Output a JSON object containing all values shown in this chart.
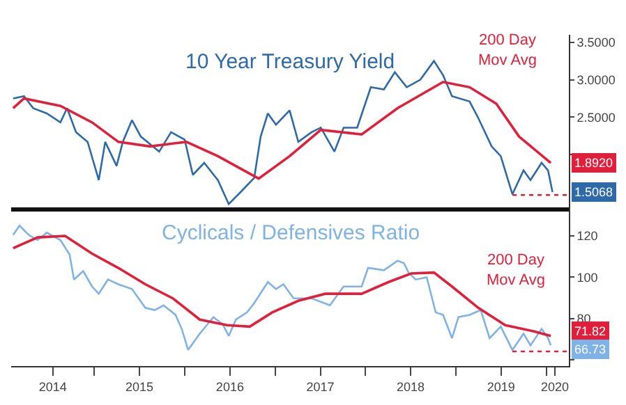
{
  "chart_data": [
    {
      "type": "line",
      "title": "10 Year Treasury Yield",
      "xlim": [
        "2014-01-30",
        "2020-04-01"
      ],
      "ylim": [
        1.3,
        3.6
      ],
      "tick_labels": "y",
      "grid": false,
      "legend": false,
      "yticks": [
        {
          "value": 2.0,
          "label": null
        },
        {
          "value": 2.5,
          "label": "2.5000"
        },
        {
          "value": 3.0,
          "label": "3.0000"
        },
        {
          "value": 3.5,
          "label": "3.5000"
        }
      ],
      "series": [
        {
          "color": "#2e6aa8",
          "x": [
            "2014-02-07",
            "2014-03-23",
            "2014-04-29",
            "2014-06-23",
            "2014-08-17",
            "2014-09-13",
            "2014-10-19",
            "2014-12-05",
            "2015-01-19",
            "2015-02-14",
            "2015-04-01",
            "2015-04-26",
            "2015-06-02",
            "2015-07-08",
            "2015-09-20",
            "2015-11-07",
            "2016-01-01",
            "2016-02-03",
            "2016-03-20",
            "2016-05-14",
            "2016-06-27",
            "2016-08-14",
            "2016-10-08",
            "2016-11-03",
            "2016-12-02",
            "2017-01-04",
            "2017-02-28",
            "2017-04-04",
            "2017-05-28",
            "2017-07-04",
            "2017-08-28",
            "2017-10-04",
            "2017-11-28",
            "2018-01-22",
            "2018-03-16",
            "2018-04-29",
            "2018-06-16",
            "2018-08-10",
            "2018-10-04",
            "2018-11-10",
            "2018-12-16",
            "2019-02-25",
            "2019-04-01",
            "2019-05-25",
            "2019-07-01",
            "2019-08-17",
            "2019-10-01",
            "2019-10-29",
            "2019-12-13",
            "2020-01-08",
            "2020-01-26"
          ],
          "values": [
            2.75,
            2.78,
            2.62,
            2.55,
            2.43,
            2.62,
            2.3,
            2.17,
            1.66,
            2.17,
            1.85,
            2.17,
            2.46,
            2.24,
            2.04,
            2.3,
            2.2,
            1.73,
            1.89,
            1.66,
            1.34,
            1.5,
            1.69,
            2.24,
            2.55,
            2.4,
            2.59,
            2.17,
            2.3,
            2.36,
            2.04,
            2.36,
            2.36,
            2.9,
            2.87,
            3.1,
            2.9,
            3.0,
            3.25,
            3.06,
            2.78,
            2.71,
            2.49,
            2.11,
            1.98,
            1.47,
            1.79,
            1.66,
            1.89,
            1.79,
            1.5
          ]
        },
        {
          "name": "200 Day Mov Avg",
          "color": "#e0203a",
          "x": [
            "2014-02-07",
            "2014-03-23",
            "2014-08-17",
            "2014-12-23",
            "2015-04-08",
            "2015-08-14",
            "2016-01-08",
            "2016-05-14",
            "2016-10-26",
            "2017-02-28",
            "2017-07-04",
            "2017-12-16",
            "2018-05-10",
            "2018-11-10",
            "2019-02-25",
            "2019-06-13",
            "2019-09-13",
            "2020-01-19"
          ],
          "values": [
            2.62,
            2.75,
            2.65,
            2.43,
            2.17,
            2.11,
            2.17,
            1.98,
            1.68,
            1.98,
            2.33,
            2.27,
            2.62,
            2.97,
            2.9,
            2.68,
            2.24,
            1.89
          ]
        },
        {
          "color": "#e0203a",
          "line_style": "dotted",
          "x": [
            "2019-08-17",
            "2020-04-01"
          ],
          "values": [
            1.46,
            1.46
          ]
        }
      ],
      "annotations": [
        {
          "text": "1.8920",
          "x": "2020-01-19",
          "y": 1.892
        },
        {
          "text": "1.5068",
          "x": "2020-01-26",
          "y": 1.5068
        }
      ]
    },
    {
      "type": "line",
      "title": "Cyclicals / Defensives Ratio",
      "xlim": [
        "2014-01-30",
        "2020-04-01"
      ],
      "ylim": [
        57,
        134
      ],
      "grid": false,
      "legend": false,
      "xticks": [
        {
          "value": "2015-01-01",
          "label": null
        },
        {
          "value": "2016-01-01",
          "label": null
        },
        {
          "value": "2017-01-01",
          "label": null
        },
        {
          "value": "2018-01-01",
          "label": null
        },
        {
          "value": "2019-01-01",
          "label": null
        },
        {
          "value": "2020-01-01",
          "label": null
        },
        {
          "value": "2014-07-17",
          "label": "2014"
        },
        {
          "value": "2015-07-02",
          "label": "2015"
        },
        {
          "value": "2016-07-02",
          "label": "2016"
        },
        {
          "value": "2017-07-02",
          "label": "2017"
        },
        {
          "value": "2018-07-02",
          "label": "2018"
        },
        {
          "value": "2019-07-02",
          "label": "2019"
        },
        {
          "value": "2020-02-05",
          "label": "2020"
        }
      ],
      "yticks": [
        {
          "value": 60,
          "label": null
        },
        80,
        100,
        120
      ],
      "series": [
        {
          "color": "#7fb3e6",
          "x": [
            "2014-02-07",
            "2014-03-05",
            "2014-04-11",
            "2014-05-17",
            "2014-06-23",
            "2014-08-17",
            "2014-09-23",
            "2014-10-11",
            "2014-11-17",
            "2014-12-23",
            "2015-01-19",
            "2015-02-25",
            "2015-04-08",
            "2015-06-02",
            "2015-07-26",
            "2015-09-02",
            "2015-10-08",
            "2015-11-25",
            "2015-12-20",
            "2016-01-15",
            "2016-03-02",
            "2016-04-26",
            "2016-06-02",
            "2016-06-27",
            "2016-07-26",
            "2016-09-09",
            "2016-10-08",
            "2016-12-02",
            "2017-01-04",
            "2017-02-03",
            "2017-03-16",
            "2017-05-28",
            "2017-08-10",
            "2017-10-04",
            "2017-12-16",
            "2018-01-11",
            "2018-03-16",
            "2018-05-10",
            "2018-06-05",
            "2018-06-23",
            "2018-07-22",
            "2018-09-05",
            "2018-10-11",
            "2018-11-10",
            "2018-12-16",
            "2019-01-11",
            "2019-02-25",
            "2019-04-11",
            "2019-05-17",
            "2019-07-01",
            "2019-08-17",
            "2019-10-01",
            "2019-10-29",
            "2019-12-13",
            "2020-01-08",
            "2020-01-19"
          ],
          "values": [
            120.5,
            125,
            120.5,
            118,
            121.6,
            118,
            111,
            98.9,
            103,
            95.5,
            92,
            98.9,
            96.6,
            94.3,
            85.2,
            84.1,
            86.4,
            81.8,
            75,
            64.8,
            72.7,
            80.7,
            77.3,
            71.6,
            79.5,
            83,
            87.5,
            97.7,
            94.3,
            96.6,
            89.8,
            89.8,
            86.4,
            95.5,
            95.5,
            104.5,
            103.4,
            108,
            106.8,
            102.3,
            98.9,
            100,
            83,
            81.8,
            70.5,
            80.7,
            81.8,
            84.1,
            70.5,
            76.1,
            64.8,
            72.7,
            67,
            75,
            70.5,
            67
          ]
        },
        {
          "name": "200 Day Mov Avg",
          "color": "#e0203a",
          "x": [
            "2014-02-07",
            "2014-05-17",
            "2014-09-05",
            "2014-12-23",
            "2015-04-08",
            "2015-07-26",
            "2015-11-14",
            "2016-03-02",
            "2016-06-20",
            "2016-09-20",
            "2016-12-20",
            "2017-04-04",
            "2017-07-22",
            "2017-12-16",
            "2018-04-04",
            "2018-07-04",
            "2018-10-04",
            "2018-12-16",
            "2019-04-01",
            "2019-07-19",
            "2019-11-07",
            "2020-01-19"
          ],
          "values": [
            114.1,
            119.3,
            120,
            111.4,
            104.5,
            96.6,
            89.8,
            79.5,
            76.8,
            76.1,
            83,
            88.6,
            92,
            92,
            97.7,
            101.8,
            102.3,
            95.5,
            85.2,
            76.8,
            73.9,
            71.6
          ]
        },
        {
          "color": "#e0203a",
          "line_style": "dotted",
          "x": [
            "2019-08-17",
            "2020-04-01"
          ],
          "values": [
            64.1,
            64.1
          ]
        }
      ],
      "annotations": [
        {
          "text": "71.82",
          "x": "2020-01-19",
          "y": 71.82
        },
        {
          "text": "66.73",
          "x": "2020-01-19",
          "y": 66.73
        }
      ]
    }
  ]
}
